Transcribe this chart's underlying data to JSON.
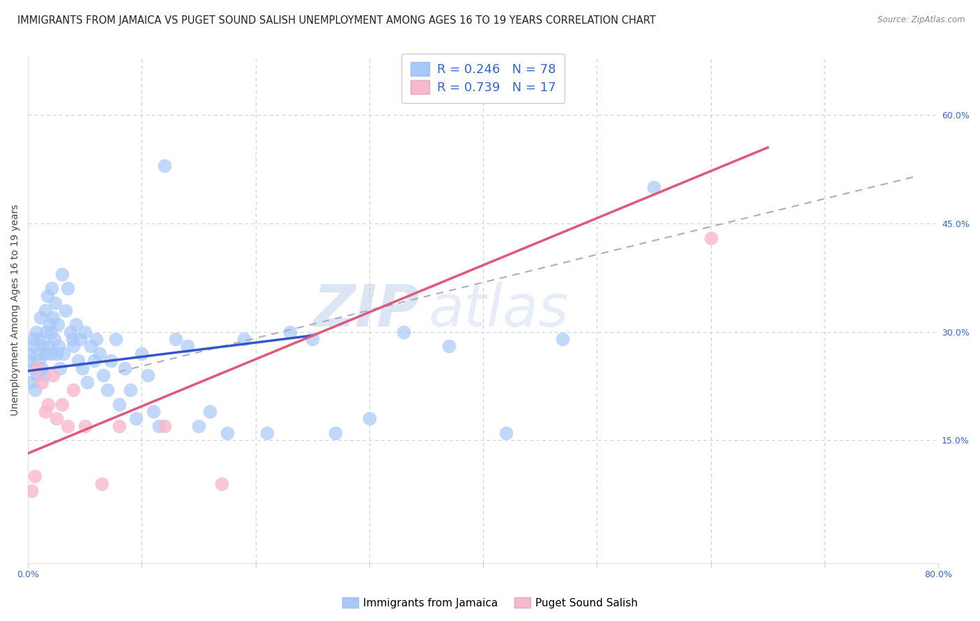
{
  "title": "IMMIGRANTS FROM JAMAICA VS PUGET SOUND SALISH UNEMPLOYMENT AMONG AGES 16 TO 19 YEARS CORRELATION CHART",
  "source": "Source: ZipAtlas.com",
  "ylabel": "Unemployment Among Ages 16 to 19 years",
  "xlim": [
    0.0,
    0.8
  ],
  "ylim": [
    -0.02,
    0.68
  ],
  "xticks": [
    0.0,
    0.1,
    0.2,
    0.3,
    0.4,
    0.5,
    0.6,
    0.7,
    0.8
  ],
  "xticklabels": [
    "0.0%",
    "",
    "",
    "",
    "",
    "",
    "",
    "",
    "80.0%"
  ],
  "yticks_right": [
    0.0,
    0.15,
    0.3,
    0.45,
    0.6
  ],
  "yticklabels_right": [
    "",
    "15.0%",
    "30.0%",
    "45.0%",
    "60.0%"
  ],
  "background_color": "#ffffff",
  "grid_color": "#cccccc",
  "watermark_zip": "ZIP",
  "watermark_atlas": "atlas",
  "series1_color": "#a8c8f8",
  "series2_color": "#f8b8cc",
  "line1_color": "#3355cc",
  "line2_color": "#e05878",
  "dashed_line_color": "#aaaacc",
  "title_fontsize": 10.5,
  "axis_label_fontsize": 10,
  "tick_fontsize": 9,
  "legend_fontsize": 13,
  "blue_line_x": [
    0.0,
    0.25
  ],
  "blue_line_y": [
    0.246,
    0.295
  ],
  "pink_line_x": [
    0.0,
    0.65
  ],
  "pink_line_y": [
    0.132,
    0.555
  ],
  "dash_line_x": [
    0.08,
    0.78
  ],
  "dash_line_y": [
    0.245,
    0.515
  ],
  "jamaica_x": [
    0.001,
    0.002,
    0.003,
    0.004,
    0.005,
    0.005,
    0.006,
    0.007,
    0.008,
    0.009,
    0.01,
    0.01,
    0.011,
    0.012,
    0.013,
    0.014,
    0.015,
    0.015,
    0.016,
    0.017,
    0.018,
    0.019,
    0.02,
    0.02,
    0.021,
    0.022,
    0.023,
    0.024,
    0.025,
    0.026,
    0.027,
    0.028,
    0.03,
    0.031,
    0.033,
    0.035,
    0.037,
    0.039,
    0.04,
    0.042,
    0.044,
    0.046,
    0.048,
    0.05,
    0.052,
    0.055,
    0.058,
    0.06,
    0.063,
    0.066,
    0.07,
    0.073,
    0.077,
    0.08,
    0.085,
    0.09,
    0.095,
    0.1,
    0.105,
    0.11,
    0.115,
    0.12,
    0.13,
    0.14,
    0.15,
    0.16,
    0.175,
    0.19,
    0.21,
    0.23,
    0.25,
    0.27,
    0.3,
    0.33,
    0.37,
    0.42,
    0.47,
    0.55
  ],
  "jamaica_y": [
    0.26,
    0.27,
    0.23,
    0.28,
    0.25,
    0.29,
    0.22,
    0.3,
    0.24,
    0.27,
    0.26,
    0.29,
    0.32,
    0.25,
    0.28,
    0.24,
    0.33,
    0.27,
    0.3,
    0.35,
    0.28,
    0.31,
    0.27,
    0.3,
    0.36,
    0.32,
    0.29,
    0.34,
    0.27,
    0.31,
    0.28,
    0.25,
    0.38,
    0.27,
    0.33,
    0.36,
    0.3,
    0.29,
    0.28,
    0.31,
    0.26,
    0.29,
    0.25,
    0.3,
    0.23,
    0.28,
    0.26,
    0.29,
    0.27,
    0.24,
    0.22,
    0.26,
    0.29,
    0.2,
    0.25,
    0.22,
    0.18,
    0.27,
    0.24,
    0.19,
    0.17,
    0.53,
    0.29,
    0.28,
    0.17,
    0.19,
    0.16,
    0.29,
    0.16,
    0.3,
    0.29,
    0.16,
    0.18,
    0.3,
    0.28,
    0.16,
    0.29,
    0.5
  ],
  "salish_x": [
    0.003,
    0.006,
    0.008,
    0.012,
    0.015,
    0.018,
    0.022,
    0.025,
    0.03,
    0.035,
    0.04,
    0.05,
    0.065,
    0.08,
    0.12,
    0.17,
    0.6
  ],
  "salish_y": [
    0.08,
    0.1,
    0.25,
    0.23,
    0.19,
    0.2,
    0.24,
    0.18,
    0.2,
    0.17,
    0.22,
    0.17,
    0.09,
    0.17,
    0.17,
    0.09,
    0.43
  ]
}
